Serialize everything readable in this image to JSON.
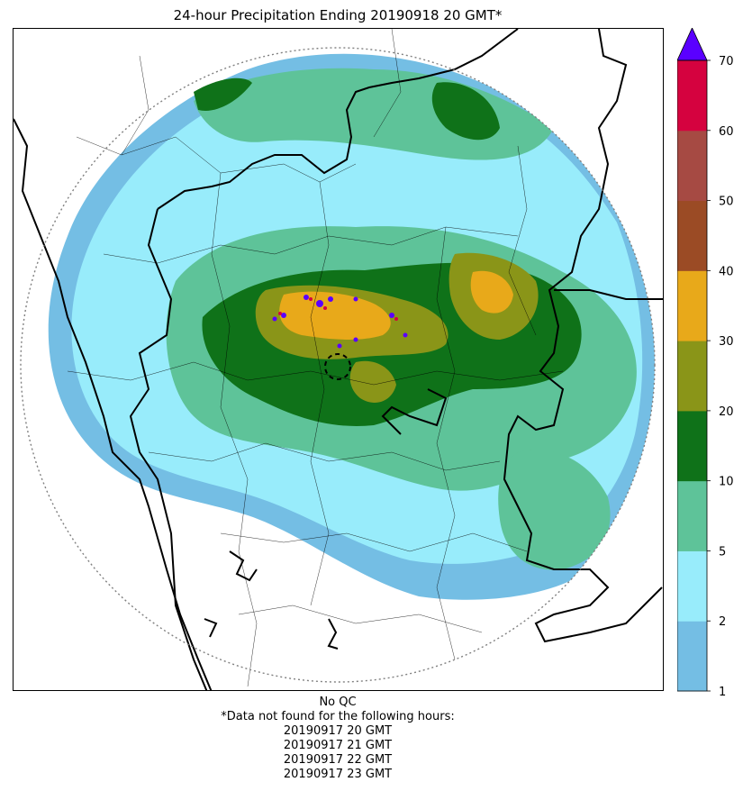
{
  "title": "24-hour Precipitation Ending 20190918 20 GMT*",
  "footer": {
    "qc": "No QC",
    "note": "*Data not found for the following hours:",
    "missing_hours": [
      "20190917 20 GMT",
      "20190917 21 GMT",
      "20190917 22 GMT",
      "20190917 23 GMT"
    ]
  },
  "colorbar": {
    "levels": [
      1,
      2,
      5,
      10,
      20,
      30,
      40,
      50,
      60,
      70
    ],
    "tick_labels": [
      "1",
      "2",
      "5",
      "10",
      "20",
      "30",
      "40",
      "50",
      "60",
      "70"
    ],
    "colors": [
      "#74bee4",
      "#98ecfb",
      "#5ec399",
      "#0f7219",
      "#8a9518",
      "#e8a91a",
      "#9b4b25",
      "#a64a43",
      "#d5023f"
    ],
    "extend_color": "#5a00ff"
  },
  "map": {
    "radar_range_ring": "dotted-circle",
    "radar_site_marker": "dashed-circle",
    "boundaries": [
      "state-borders",
      "district-borders",
      "coastline"
    ]
  }
}
